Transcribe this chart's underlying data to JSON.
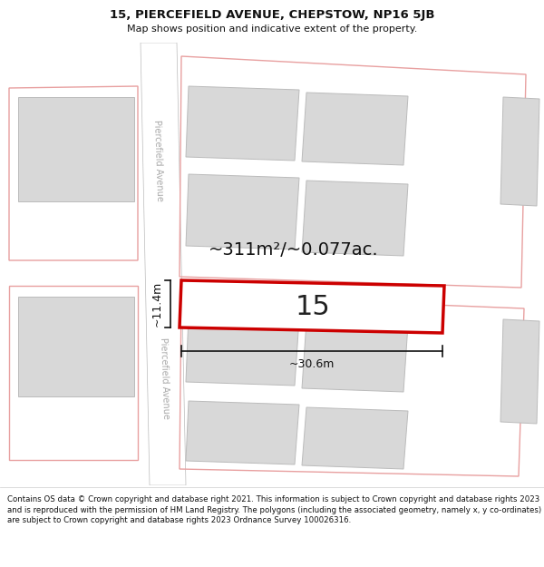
{
  "title": "15, PIERCEFIELD AVENUE, CHEPSTOW, NP16 5JB",
  "subtitle": "Map shows position and indicative extent of the property.",
  "footer": "Contains OS data © Crown copyright and database right 2021. This information is subject to Crown copyright and database rights 2023 and is reproduced with the permission of HM Land Registry. The polygons (including the associated geometry, namely x, y co-ordinates) are subject to Crown copyright and database rights 2023 Ordnance Survey 100026316.",
  "map_bg": "#f0f0f0",
  "road_fill": "#ffffff",
  "road_edge": "#bbbbbb",
  "building_fill": "#d8d8d8",
  "building_edge": "#bbbbbb",
  "parcel_stroke": "#e8a0a0",
  "highlight_fill": "#ffffff",
  "highlight_stroke": "#cc0000",
  "road_label_color": "#aaaaaa",
  "area_label": "~311m²/~0.077ac.",
  "width_label": "~30.6m",
  "height_label": "~11.4m",
  "house_number": "15"
}
